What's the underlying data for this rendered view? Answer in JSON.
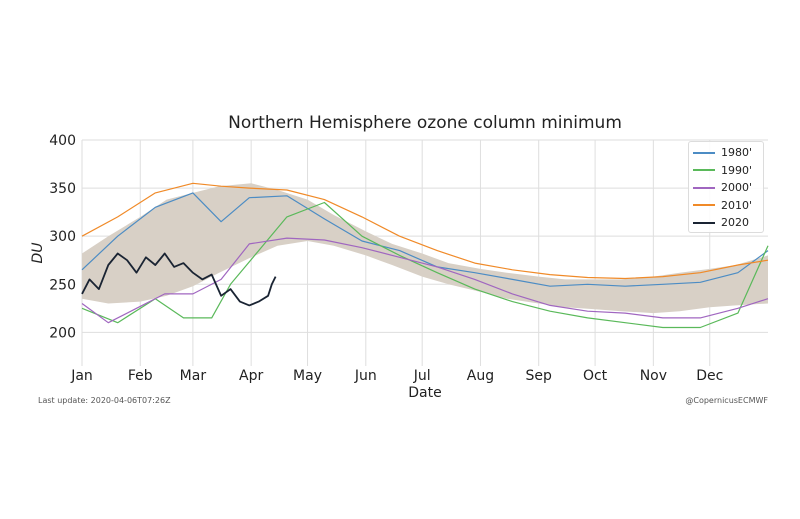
{
  "chart_data": {
    "type": "line",
    "title": "Northern Hemisphere ozone column minimum",
    "xlabel": "Date",
    "ylabel": "DU",
    "x_ticks": [
      "Jan",
      "Feb",
      "Mar",
      "Apr",
      "May",
      "Jun",
      "Jul",
      "Aug",
      "Sep",
      "Oct",
      "Nov",
      "Dec"
    ],
    "y_ticks": [
      200,
      250,
      300,
      350,
      400
    ],
    "ylim": [
      165,
      400
    ],
    "xlim": [
      1,
      366
    ],
    "grid": true,
    "legend_position": "top-right",
    "band": {
      "x": [
        1,
        15,
        32,
        46,
        60,
        74,
        91,
        105,
        121,
        135,
        152,
        166,
        182,
        196,
        213,
        227,
        244,
        258,
        274,
        288,
        305,
        319,
        335,
        349,
        366
      ],
      "low": [
        235,
        230,
        232,
        238,
        248,
        262,
        278,
        290,
        295,
        290,
        280,
        270,
        258,
        250,
        242,
        235,
        230,
        226,
        224,
        222,
        220,
        222,
        226,
        228,
        230
      ],
      "high": [
        282,
        300,
        320,
        338,
        345,
        352,
        355,
        348,
        338,
        322,
        305,
        292,
        282,
        272,
        266,
        262,
        258,
        255,
        255,
        255,
        258,
        262,
        266,
        270,
        280
      ]
    },
    "series": [
      {
        "name": "1980'",
        "color": "#4c8cc4",
        "points": [
          [
            1,
            265
          ],
          [
            20,
            300
          ],
          [
            40,
            330
          ],
          [
            60,
            345
          ],
          [
            75,
            315
          ],
          [
            90,
            340
          ],
          [
            110,
            342
          ],
          [
            130,
            318
          ],
          [
            150,
            295
          ],
          [
            170,
            285
          ],
          [
            190,
            268
          ],
          [
            210,
            262
          ],
          [
            230,
            255
          ],
          [
            250,
            248
          ],
          [
            270,
            250
          ],
          [
            290,
            248
          ],
          [
            310,
            250
          ],
          [
            330,
            252
          ],
          [
            350,
            262
          ],
          [
            366,
            285
          ]
        ]
      },
      {
        "name": "1990'",
        "color": "#5ab95a",
        "points": [
          [
            1,
            225
          ],
          [
            20,
            210
          ],
          [
            40,
            235
          ],
          [
            55,
            215
          ],
          [
            70,
            215
          ],
          [
            80,
            250
          ],
          [
            95,
            285
          ],
          [
            110,
            320
          ],
          [
            130,
            335
          ],
          [
            150,
            300
          ],
          [
            170,
            280
          ],
          [
            190,
            262
          ],
          [
            210,
            245
          ],
          [
            230,
            232
          ],
          [
            250,
            222
          ],
          [
            270,
            215
          ],
          [
            290,
            210
          ],
          [
            310,
            205
          ],
          [
            330,
            205
          ],
          [
            350,
            220
          ],
          [
            366,
            290
          ]
        ]
      },
      {
        "name": "2000'",
        "color": "#a066c0",
        "points": [
          [
            1,
            230
          ],
          [
            15,
            210
          ],
          [
            30,
            225
          ],
          [
            45,
            240
          ],
          [
            60,
            240
          ],
          [
            75,
            255
          ],
          [
            90,
            292
          ],
          [
            110,
            298
          ],
          [
            130,
            296
          ],
          [
            150,
            288
          ],
          [
            170,
            278
          ],
          [
            190,
            268
          ],
          [
            210,
            255
          ],
          [
            230,
            240
          ],
          [
            250,
            228
          ],
          [
            270,
            222
          ],
          [
            290,
            220
          ],
          [
            310,
            215
          ],
          [
            330,
            215
          ],
          [
            350,
            225
          ],
          [
            366,
            235
          ]
        ]
      },
      {
        "name": "2010'",
        "color": "#f08a28",
        "points": [
          [
            1,
            300
          ],
          [
            20,
            320
          ],
          [
            40,
            345
          ],
          [
            60,
            355
          ],
          [
            75,
            352
          ],
          [
            90,
            350
          ],
          [
            110,
            348
          ],
          [
            130,
            338
          ],
          [
            150,
            320
          ],
          [
            170,
            300
          ],
          [
            190,
            285
          ],
          [
            210,
            272
          ],
          [
            230,
            265
          ],
          [
            250,
            260
          ],
          [
            270,
            257
          ],
          [
            290,
            256
          ],
          [
            310,
            258
          ],
          [
            330,
            262
          ],
          [
            350,
            270
          ],
          [
            366,
            275
          ]
        ]
      },
      {
        "name": "2020",
        "color": "#1a2433",
        "points": [
          [
            1,
            240
          ],
          [
            5,
            255
          ],
          [
            10,
            245
          ],
          [
            15,
            270
          ],
          [
            20,
            282
          ],
          [
            25,
            275
          ],
          [
            30,
            262
          ],
          [
            35,
            278
          ],
          [
            40,
            270
          ],
          [
            45,
            282
          ],
          [
            50,
            268
          ],
          [
            55,
            272
          ],
          [
            60,
            262
          ],
          [
            65,
            255
          ],
          [
            70,
            260
          ],
          [
            75,
            238
          ],
          [
            80,
            245
          ],
          [
            85,
            232
          ],
          [
            90,
            228
          ],
          [
            95,
            232
          ],
          [
            100,
            238
          ],
          [
            102,
            250
          ],
          [
            104,
            258
          ]
        ]
      }
    ]
  },
  "footer": {
    "last_update": "Last update: 2020-04-06T07:26Z",
    "credit": "@CopernicusECMWF"
  }
}
